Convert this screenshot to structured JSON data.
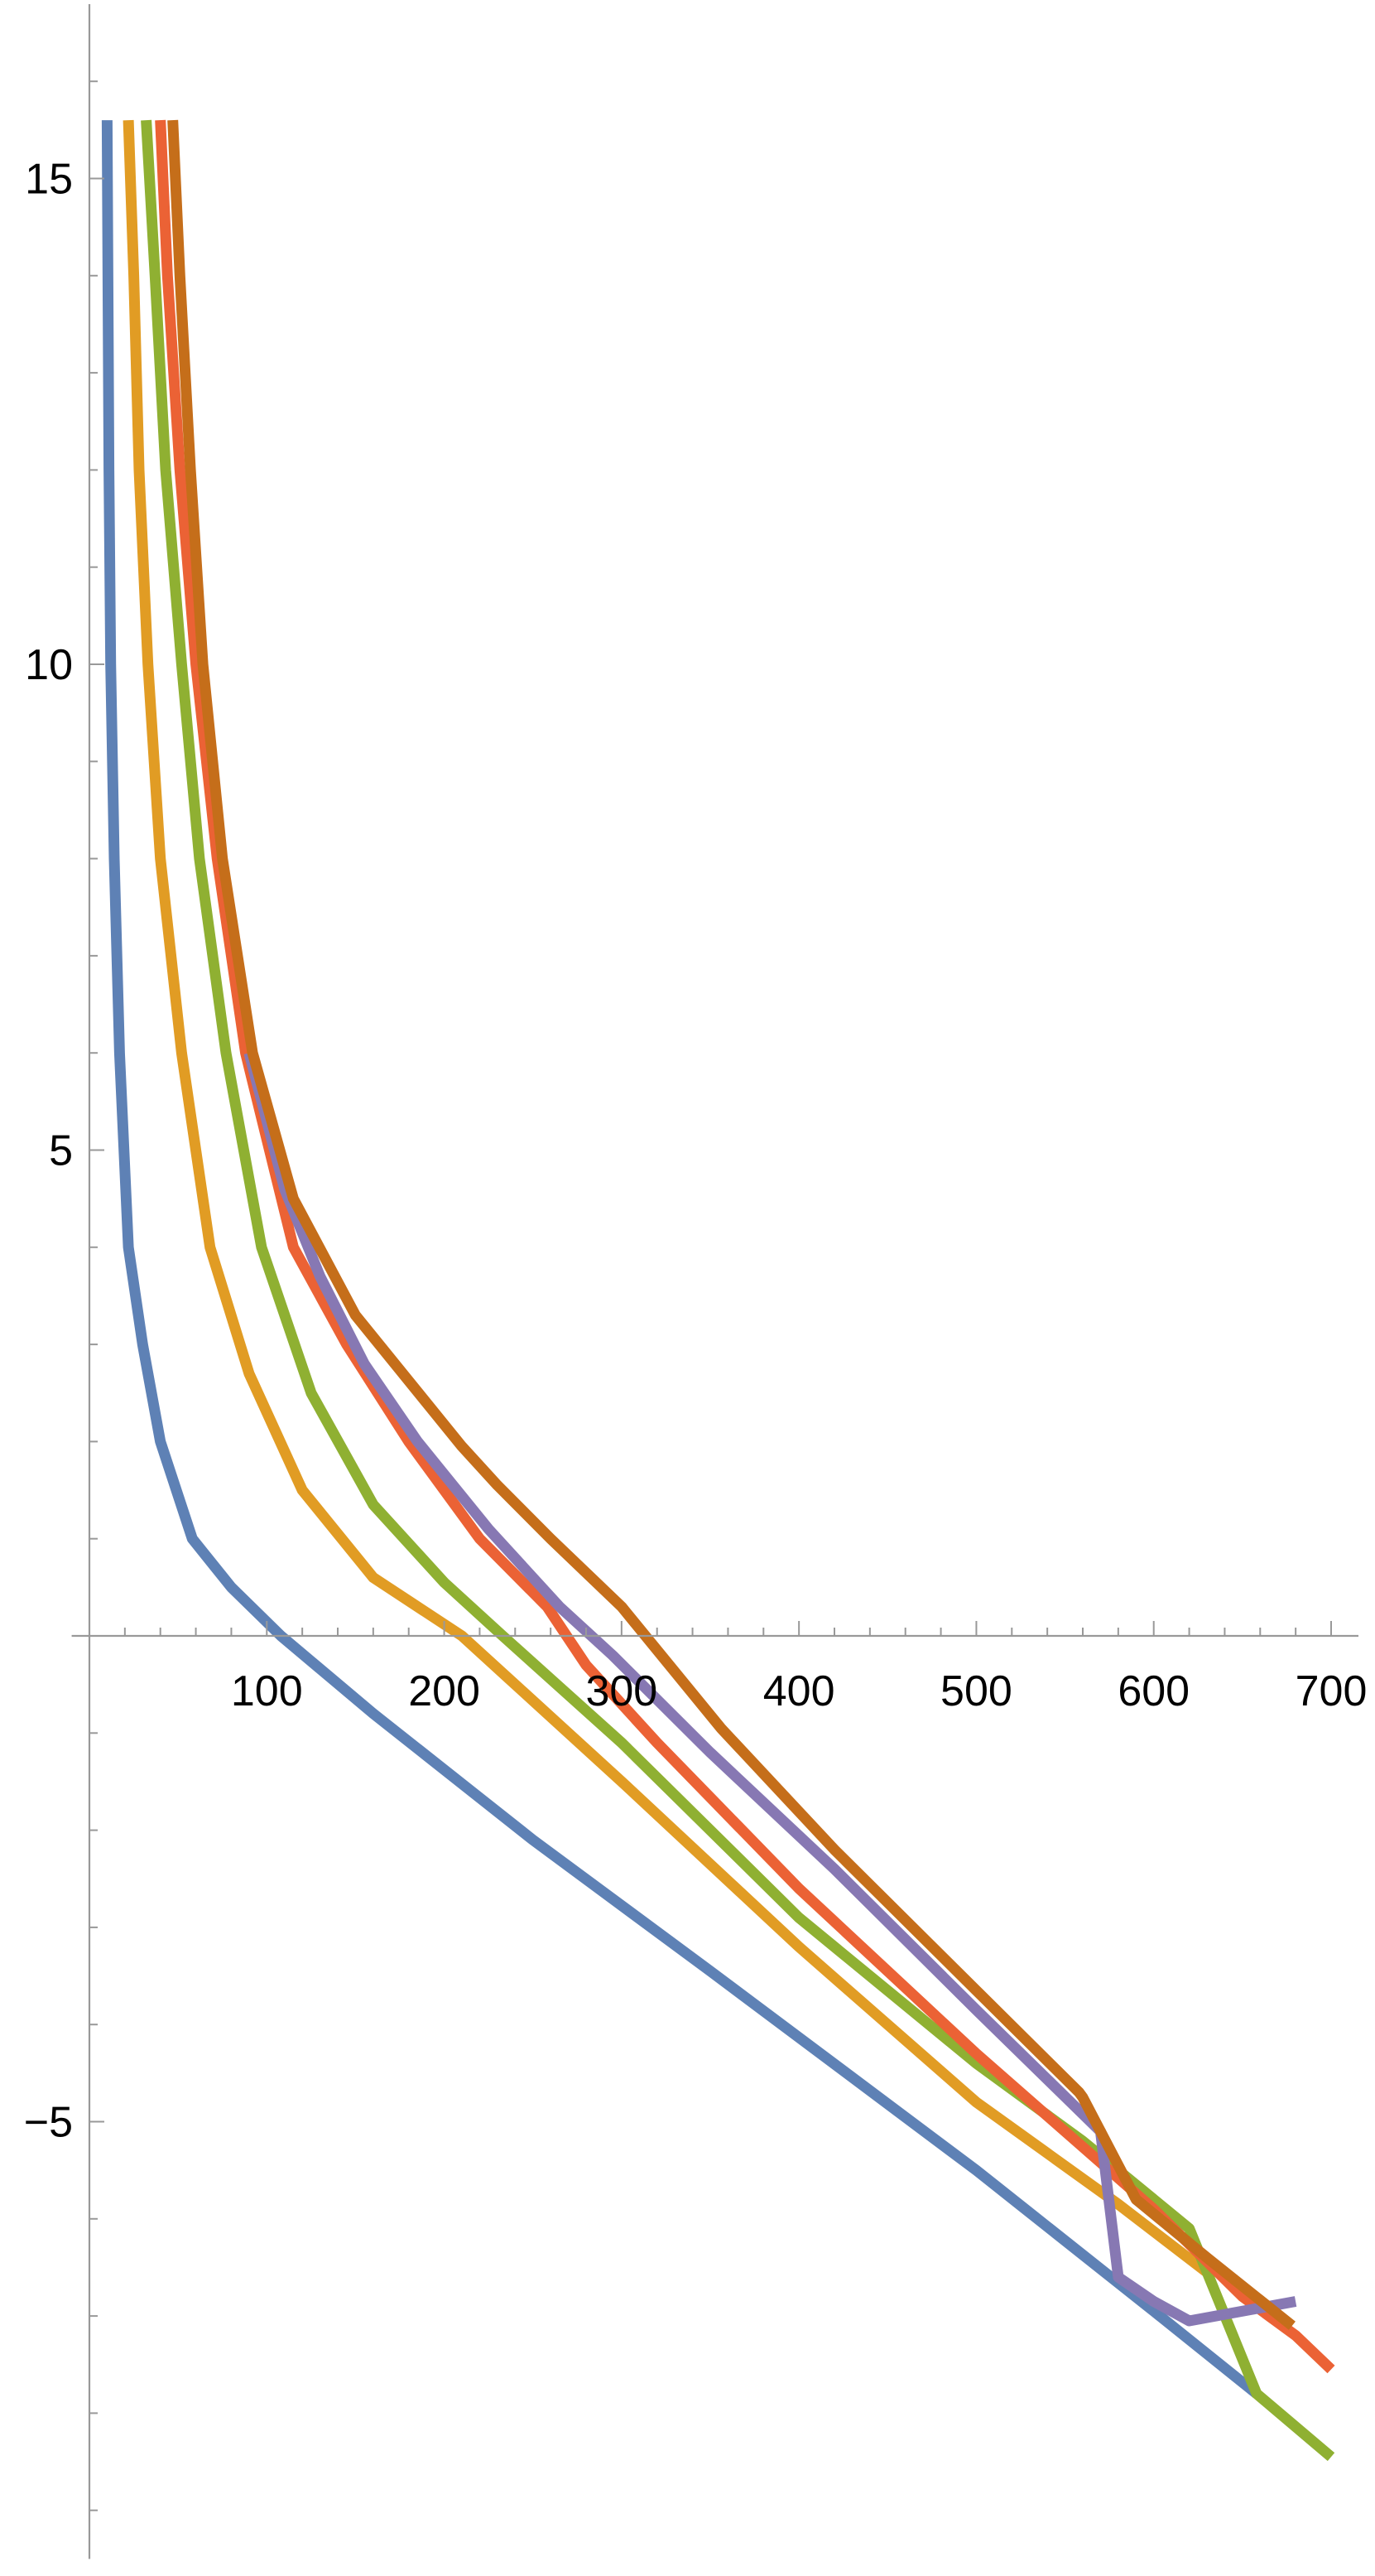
{
  "chart_data": {
    "type": "line",
    "title": "",
    "xlabel": "",
    "ylabel": "",
    "xlim": [
      -10,
      712
    ],
    "ylim": [
      -9.5,
      16.8
    ],
    "x_ticks": [
      100,
      200,
      300,
      400,
      500,
      600,
      700
    ],
    "y_ticks": [
      -5,
      5,
      10,
      15
    ],
    "x_tick_labels": [
      "100",
      "200",
      "300",
      "400",
      "500",
      "600",
      "700"
    ],
    "y_tick_labels": [
      "−5",
      "5",
      "10",
      "15"
    ],
    "x_minor_step": 20,
    "y_minor_step": 1,
    "grid": false,
    "legend": "none",
    "series": [
      {
        "color": "#5e81b5",
        "points": [
          [
            10,
            15.6
          ],
          [
            11,
            12
          ],
          [
            12,
            10
          ],
          [
            14,
            8
          ],
          [
            17,
            6
          ],
          [
            22,
            4
          ],
          [
            30,
            3
          ],
          [
            40,
            2
          ],
          [
            58,
            1
          ],
          [
            80,
            0.5
          ],
          [
            108,
            0
          ],
          [
            160,
            -0.8
          ],
          [
            250,
            -2.1
          ],
          [
            350,
            -3.45
          ],
          [
            500,
            -5.5
          ],
          [
            600,
            -6.95
          ],
          [
            658,
            -7.8
          ]
        ]
      },
      {
        "color": "#e19c24",
        "points": [
          [
            22,
            15.6
          ],
          [
            25,
            14
          ],
          [
            28,
            12
          ],
          [
            33,
            10
          ],
          [
            40,
            8
          ],
          [
            52,
            6
          ],
          [
            68,
            4
          ],
          [
            90,
            2.7
          ],
          [
            120,
            1.5
          ],
          [
            160,
            0.6
          ],
          [
            210,
            0
          ],
          [
            300,
            -1.5
          ],
          [
            400,
            -3.2
          ],
          [
            500,
            -4.8
          ],
          [
            580,
            -5.85
          ],
          [
            630,
            -6.55
          ]
        ]
      },
      {
        "color": "#8fb032",
        "points": [
          [
            32,
            15.6
          ],
          [
            37,
            14
          ],
          [
            43,
            12
          ],
          [
            52,
            10
          ],
          [
            62,
            8
          ],
          [
            77,
            6
          ],
          [
            97,
            4
          ],
          [
            125,
            2.5
          ],
          [
            160,
            1.35
          ],
          [
            200,
            0.55
          ],
          [
            233,
            0
          ],
          [
            300,
            -1.1
          ],
          [
            400,
            -2.9
          ],
          [
            500,
            -4.4
          ],
          [
            560,
            -5.2
          ],
          [
            620,
            -6.1
          ],
          [
            658,
            -7.8
          ],
          [
            700,
            -8.45
          ]
        ]
      },
      {
        "color": "#eb6235",
        "points": [
          [
            40,
            15.6
          ],
          [
            44,
            14
          ],
          [
            51,
            12
          ],
          [
            60,
            10
          ],
          [
            72,
            8
          ],
          [
            88,
            6
          ],
          [
            115,
            4
          ],
          [
            145,
            3
          ],
          [
            180,
            2
          ],
          [
            220,
            1
          ],
          [
            258,
            0.3
          ],
          [
            280,
            -0.3
          ],
          [
            320,
            -1.1
          ],
          [
            400,
            -2.6
          ],
          [
            500,
            -4.3
          ],
          [
            600,
            -5.9
          ],
          [
            650,
            -6.8
          ],
          [
            680,
            -7.2
          ],
          [
            700,
            -7.55
          ]
        ]
      },
      {
        "color": "#8778b3",
        "points": [
          [
            90,
            6
          ],
          [
            110,
            4.6
          ],
          [
            130,
            3.7
          ],
          [
            155,
            2.8
          ],
          [
            185,
            2
          ],
          [
            225,
            1.1
          ],
          [
            265,
            0.3
          ],
          [
            295,
            -0.2
          ],
          [
            350,
            -1.2
          ],
          [
            420,
            -2.4
          ],
          [
            500,
            -3.85
          ],
          [
            570,
            -5.1
          ],
          [
            580,
            -6.6
          ],
          [
            600,
            -6.85
          ],
          [
            620,
            -7.05
          ],
          [
            680,
            -6.85
          ]
        ]
      },
      {
        "color": "#c56e1a",
        "points": [
          [
            47,
            15.6
          ],
          [
            51,
            14
          ],
          [
            57,
            12
          ],
          [
            64,
            10
          ],
          [
            75,
            8
          ],
          [
            92,
            6
          ],
          [
            115,
            4.5
          ],
          [
            150,
            3.3
          ],
          [
            210,
            1.95
          ],
          [
            230,
            1.55
          ],
          [
            260,
            1.0
          ],
          [
            300,
            0.3
          ],
          [
            356,
            -0.95
          ],
          [
            420,
            -2.2
          ],
          [
            500,
            -3.65
          ],
          [
            558,
            -4.7
          ],
          [
            560,
            -4.75
          ],
          [
            590,
            -5.8
          ],
          [
            630,
            -6.4
          ],
          [
            678,
            -7.1
          ]
        ]
      }
    ]
  }
}
